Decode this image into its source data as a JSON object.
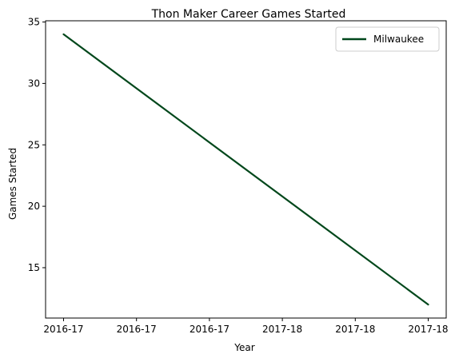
{
  "chart_data": {
    "type": "line",
    "title": "Thon Maker Career Games Started",
    "xlabel": "Year",
    "ylabel": "Games Started",
    "x_tick_labels": [
      "2016-17",
      "2016-17",
      "2016-17",
      "2017-18",
      "2017-18",
      "2017-18"
    ],
    "x_range": [
      0,
      5
    ],
    "y_ticks": [
      15,
      20,
      25,
      30,
      35
    ],
    "ylim": [
      10.9,
      35.1
    ],
    "grid": false,
    "legend_position": "top-right",
    "series": [
      {
        "name": "Milwaukee",
        "color": "#00471b",
        "x": [
          0,
          5
        ],
        "values": [
          34,
          12
        ]
      }
    ]
  }
}
